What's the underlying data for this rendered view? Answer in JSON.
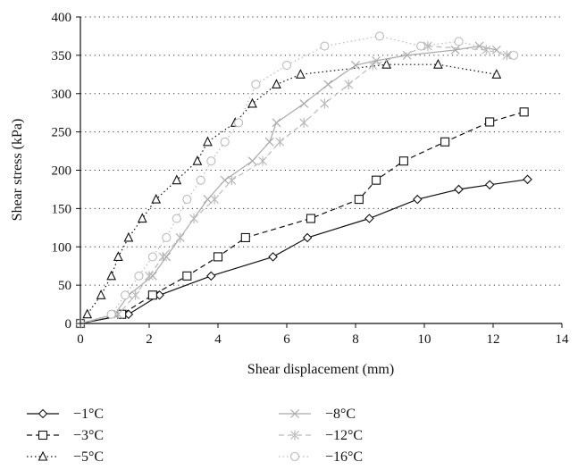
{
  "chart_data": {
    "type": "line",
    "xlabel": "Shear displacement (mm)",
    "ylabel": "Shear stress (kPa)",
    "xlim": [
      0,
      14
    ],
    "ylim": [
      0,
      400
    ],
    "x_ticks": [
      0,
      2,
      4,
      6,
      8,
      10,
      12,
      14
    ],
    "y_ticks": [
      0,
      50,
      100,
      150,
      200,
      250,
      300,
      350,
      400
    ],
    "grid": "horizontal dotted",
    "legend_position": "bottom",
    "series": [
      {
        "name": "−1°C",
        "color": "#111111",
        "dash": "solid",
        "marker": "diamond",
        "x": [
          0,
          1.4,
          2.3,
          3.8,
          5.6,
          6.6,
          8.4,
          9.8,
          11.0,
          11.9,
          13.0
        ],
        "y": [
          0,
          12,
          37,
          62,
          87,
          112,
          137,
          162,
          175,
          181,
          188
        ]
      },
      {
        "name": "−3°C",
        "color": "#111111",
        "dash": "dashed",
        "marker": "square",
        "x": [
          0,
          1.2,
          2.1,
          3.1,
          4.0,
          4.8,
          6.7,
          8.1,
          8.6,
          9.4,
          10.6,
          11.9,
          12.9
        ],
        "y": [
          0,
          12,
          37,
          62,
          87,
          112,
          137,
          162,
          187,
          212,
          237,
          263,
          276
        ]
      },
      {
        "name": "−5°C",
        "color": "#111111",
        "dash": "dotted",
        "marker": "triangle",
        "x": [
          0,
          0.2,
          0.6,
          0.9,
          1.1,
          1.4,
          1.8,
          2.2,
          2.8,
          3.4,
          3.7,
          4.5,
          5.0,
          5.7,
          6.4,
          8.9,
          10.4,
          12.1
        ],
        "y": [
          0,
          12,
          37,
          62,
          87,
          112,
          137,
          162,
          187,
          212,
          237,
          262,
          287,
          312,
          325,
          338,
          338,
          325
        ]
      },
      {
        "name": "−8°C",
        "color": "#aaaaaa",
        "dash": "solid",
        "marker": "x",
        "x": [
          0,
          1.0,
          1.4,
          2.1,
          2.5,
          2.9,
          3.7,
          4.2,
          5.0,
          5.5,
          5.7,
          6.5,
          7.2,
          8.0,
          8.6,
          9.5,
          10.9,
          11.6,
          12.1
        ],
        "y": [
          0,
          12,
          37,
          62,
          87,
          112,
          162,
          187,
          212,
          237,
          262,
          287,
          312,
          337,
          343,
          350,
          357,
          362,
          357
        ]
      },
      {
        "name": "−12°C",
        "color": "#bbbbbb",
        "dash": "dashed",
        "marker": "star",
        "x": [
          0,
          1.1,
          1.6,
          2.0,
          2.4,
          2.9,
          3.3,
          3.9,
          4.4,
          5.3,
          5.8,
          6.5,
          7.1,
          7.8,
          8.5,
          10.1,
          11.8,
          12.4
        ],
        "y": [
          0,
          12,
          37,
          62,
          87,
          112,
          137,
          162,
          187,
          212,
          237,
          262,
          287,
          312,
          337,
          362,
          357,
          350
        ]
      },
      {
        "name": "−16°C",
        "color": "#bbbbbb",
        "dash": "dotted",
        "marker": "circle",
        "x": [
          0,
          0.9,
          1.3,
          1.7,
          2.1,
          2.5,
          2.8,
          3.1,
          3.5,
          3.8,
          4.2,
          4.6,
          5.1,
          6.0,
          7.1,
          8.7,
          9.9,
          11.0,
          12.6
        ],
        "y": [
          0,
          12,
          37,
          62,
          87,
          112,
          137,
          162,
          187,
          212,
          237,
          262,
          312,
          337,
          362,
          375,
          362,
          368,
          350
        ]
      }
    ]
  }
}
